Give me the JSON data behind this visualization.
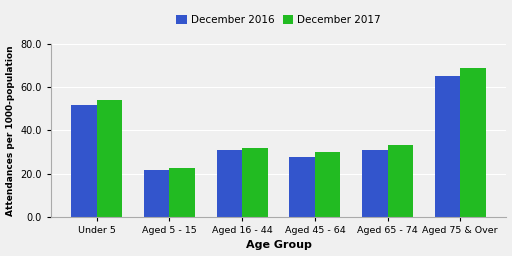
{
  "categories": [
    "Under 5",
    "Aged 5 - 15",
    "Aged 16 - 44",
    "Aged 45 - 64",
    "Aged 65 - 74",
    "Aged 75 & Over"
  ],
  "dec2016": [
    51.5,
    21.5,
    31.0,
    27.5,
    31.0,
    65.0
  ],
  "dec2017": [
    54.0,
    22.5,
    32.0,
    30.0,
    33.0,
    69.0
  ],
  "color_2016": "#3355CC",
  "color_2017": "#22BB22",
  "xlabel": "Age Group",
  "ylabel": "Attendances per 1000-population",
  "ylim": [
    0,
    80
  ],
  "yticks": [
    0.0,
    20.0,
    40.0,
    60.0,
    80.0
  ],
  "ytick_labels": [
    "0.0",
    "20.0",
    "40.0",
    "60.0",
    "80.0"
  ],
  "legend_labels": [
    "December 2016",
    "December 2017"
  ],
  "bar_width": 0.35,
  "figsize": [
    5.12,
    2.56
  ],
  "dpi": 100,
  "bg_color": "#f0f0f0"
}
